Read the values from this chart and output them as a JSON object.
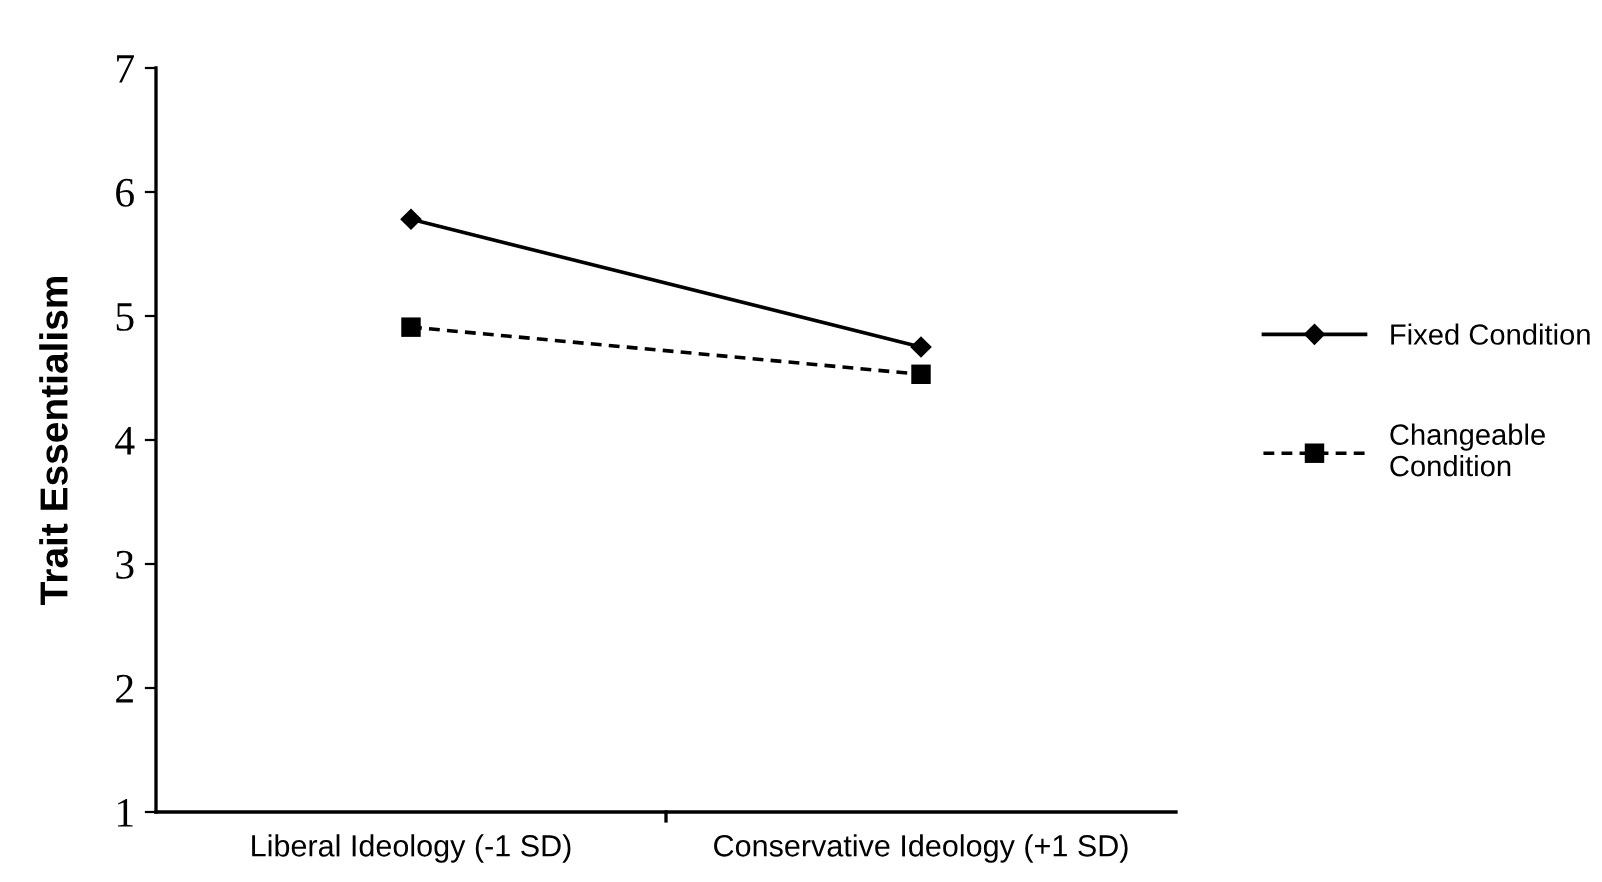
{
  "chart_data": {
    "type": "line",
    "ylabel": "Trait Essentialism",
    "categories": [
      "Liberal Ideology (-1 SD)",
      "Conservative Ideology (+1 SD)"
    ],
    "series": [
      {
        "name": "Fixed Condition",
        "color": "#000000",
        "values": [
          5.78,
          4.75
        ],
        "marker": "diamond",
        "line_style": "solid"
      },
      {
        "name": "Changeable Condition",
        "color": "#000000",
        "values": [
          4.91,
          4.53
        ],
        "marker": "square",
        "line_style": "dashed"
      }
    ],
    "ylim": [
      1,
      7
    ],
    "yticks": [
      1,
      2,
      3,
      4,
      5,
      6,
      7
    ],
    "grid": false,
    "legend": "right"
  }
}
